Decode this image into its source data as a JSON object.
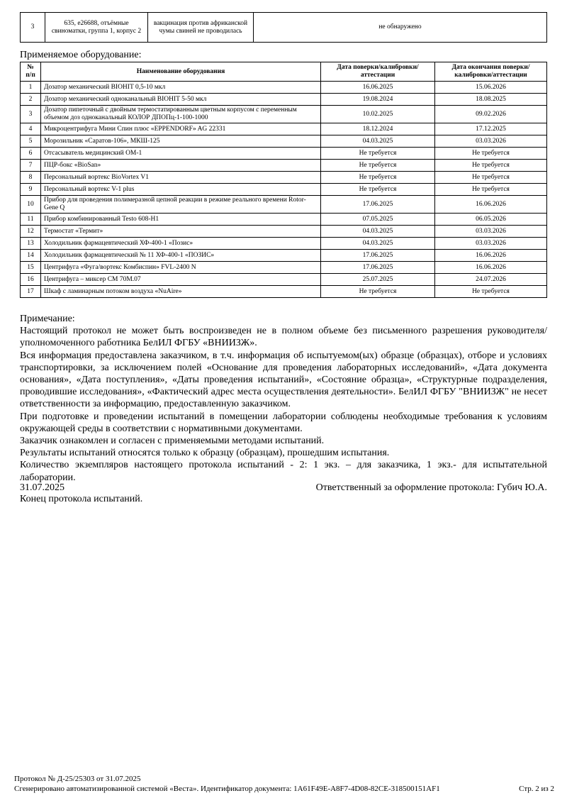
{
  "results_table": {
    "rows": [
      {
        "num": "3",
        "sample": "635, е26688, отъёмные свиноматки, группа 1, корпус 2",
        "vaccination": "вакцинация против африканской чумы свиней не проводилась",
        "result": "не обнаружено"
      }
    ]
  },
  "equipment": {
    "label": "Применяемое оборудование:",
    "headers": {
      "num": "№ п/п",
      "name": "Наименование оборудования",
      "date": "Дата поверки/калибровки/аттестации",
      "end": "Дата окончания поверки/калибровки/аттестации"
    },
    "rows": [
      {
        "num": "1",
        "name": "Дозатор механический BIOHIT 0,5-10 мкл",
        "date": "16.06.2025",
        "end": "15.06.2026"
      },
      {
        "num": "2",
        "name": "Дозатор механический одноканальный BIOHIT 5-50 мкл",
        "date": "19.08.2024",
        "end": "18.08.2025"
      },
      {
        "num": "3",
        "name": "Дозатор пипеточный с двойным термостатированным цветным корпусом с переменным объемом доз одноканальный КОЛОР ДПОПц-1-100-1000",
        "date": "10.02.2025",
        "end": "09.02.2026"
      },
      {
        "num": "4",
        "name": "Микроцентрифуга Мини Спин плюс «EPPENDORF» AG 22331",
        "date": "18.12.2024",
        "end": "17.12.2025"
      },
      {
        "num": "5",
        "name": "Морозильник «Саратов-106», МКШ-125",
        "date": "04.03.2025",
        "end": "03.03.2026"
      },
      {
        "num": "6",
        "name": "Отсасыватель медицинский ОМ-1",
        "date": "Не требуется",
        "end": "Не требуется"
      },
      {
        "num": "7",
        "name": "ПЦР-бокс «BioSan»",
        "date": "Не требуется",
        "end": "Не требуется"
      },
      {
        "num": "8",
        "name": "Персональный вортекс BioVortex V1",
        "date": "Не требуется",
        "end": "Не требуется"
      },
      {
        "num": "9",
        "name": "Персональный вортекс V-1 plus",
        "date": "Не требуется",
        "end": "Не требуется"
      },
      {
        "num": "10",
        "name": "Прибор для проведения полимеразной цепной реакции в режиме реального времени Rotor-Gene Q",
        "date": "17.06.2025",
        "end": "16.06.2026"
      },
      {
        "num": "11",
        "name": "Прибор комбинированный Testo 608-H1",
        "date": "07.05.2025",
        "end": "06.05.2026"
      },
      {
        "num": "12",
        "name": "Термостат «Термит»",
        "date": "04.03.2025",
        "end": "03.03.2026"
      },
      {
        "num": "13",
        "name": "Холодильник фармацевтический ХФ-400-1 «Позис»",
        "date": "04.03.2025",
        "end": "03.03.2026"
      },
      {
        "num": "14",
        "name": "Холодильник фармацевтический № 11 ХФ-400-1 «ПОЗИС»",
        "date": "17.06.2025",
        "end": "16.06.2026"
      },
      {
        "num": "15",
        "name": "Центрифуга «Фуга/вортекс Комбиспин» FVL-2400 N",
        "date": "17.06.2025",
        "end": "16.06.2026"
      },
      {
        "num": "16",
        "name": "Центрифуга – миксер СМ 70М.07",
        "date": "25.07.2025",
        "end": "24.07.2026"
      },
      {
        "num": "17",
        "name": "Шкаф с ламинарным потоком воздуха «NuAire»",
        "date": "Не требуется",
        "end": "Не требуется"
      }
    ]
  },
  "notes": {
    "title": "Примечание:",
    "paragraphs": [
      "Настоящий протокол не может быть воспроизведен не в полном объеме без письменного разрешения руководителя/уполномоченного работника БелИЛ ФГБУ «ВНИИЗЖ».",
      "Вся информация предоставлена заказчиком, в т.ч. информация об испытуемом(ых) образце (образцах), отборе и условиях транспортировки, за исключением полей «Основание для проведения лабораторных исследований», «Дата документа основания», «Дата поступления», «Даты проведения испытаний», «Состояние образца», «Структурные подразделения, проводившие исследования», «Фактический адрес места осуществления деятельности». БелИЛ ФГБУ \"ВНИИЗЖ\" не несет ответственности за информацию, предоставленную заказчиком.",
      "При подготовке и проведении испытаний в помещении лаборатории соблюдены необходимые требования к условиям окружающей среды в соответствии с нормативными документами.",
      "Заказчик ознакомлен и согласен с применяемыми методами испытаний.",
      "Результаты испытаний относятся только к образцу (образцам), прошедшим испытания.",
      "Количество экземпляров настоящего протокола испытаний - 2: 1 экз. – для заказчика, 1 экз.- для испытательной лаборатории."
    ]
  },
  "signature": {
    "date": "31.07.2025",
    "responsible": "Ответственный за оформление протокола: Губич Ю.А.",
    "end_text": "Конец протокола испытаний."
  },
  "footer": {
    "protocol": "Протокол № Д-25/25303 от 31.07.2025",
    "generated": "Сгенерировано автоматизированной системой «Веста». Идентификатор документа: 1A61F49E-A8F7-4D08-82CE-318500151AF1",
    "page": "Стр. 2 из 2"
  }
}
